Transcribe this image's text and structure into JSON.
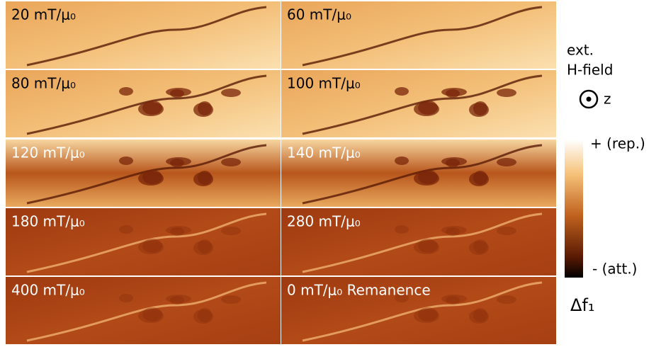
{
  "panels": [
    {
      "label": "20 mT/μ₀"
    },
    {
      "label": "60 mT/μ₀"
    },
    {
      "label": "80 mT/μ₀"
    },
    {
      "label": "100 mT/μ₀"
    },
    {
      "label": "120 mT/μ₀"
    },
    {
      "label": "140 mT/μ₀"
    },
    {
      "label": "180 mT/μ₀"
    },
    {
      "label": "280 mT/μ₀"
    },
    {
      "label": "400 mT/μ₀"
    },
    {
      "label": "0 mT/μ₀ Remanence"
    }
  ],
  "legend": {
    "field_line1": "ext.",
    "field_line2": "H-field",
    "axis": "z"
  },
  "colorbar": {
    "top_label": "+ (rep.)",
    "bottom_label": "- (att.)",
    "quantity": "Δf₁"
  }
}
